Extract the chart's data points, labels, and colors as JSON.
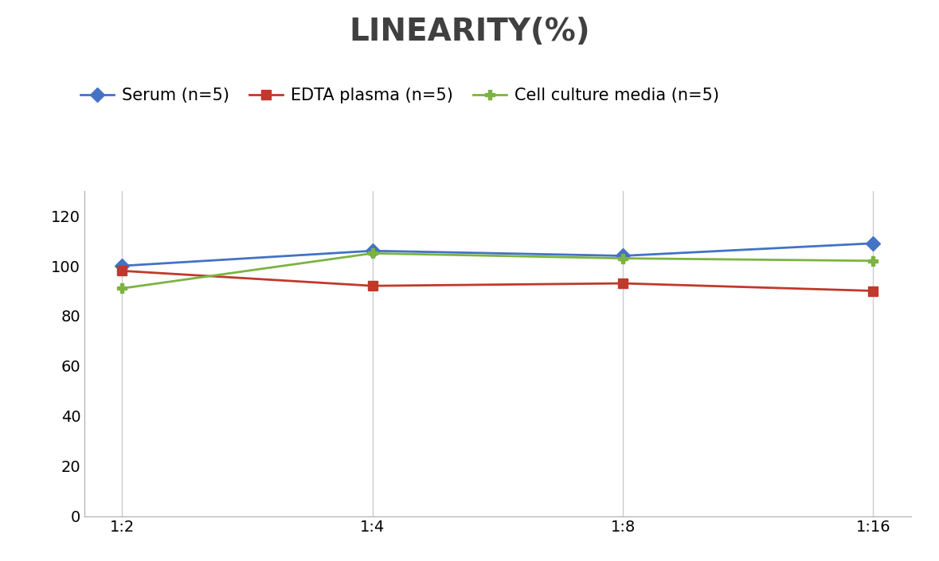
{
  "title": "LINEARITY(%)",
  "x_labels": [
    "1:2",
    "1:4",
    "1:8",
    "1:16"
  ],
  "series": [
    {
      "label": "Serum (n=5)",
      "values": [
        100,
        106,
        104,
        109
      ],
      "color": "#4472C4",
      "marker": "D"
    },
    {
      "label": "EDTA plasma (n=5)",
      "values": [
        98,
        92,
        93,
        90
      ],
      "color": "#C0392B",
      "marker": "s"
    },
    {
      "label": "Cell culture media (n=5)",
      "values": [
        91,
        105,
        103,
        102
      ],
      "color": "#7CB342",
      "marker": "P"
    }
  ],
  "ylim": [
    0,
    130
  ],
  "yticks": [
    0,
    20,
    40,
    60,
    80,
    100,
    120
  ],
  "title_fontsize": 28,
  "legend_fontsize": 15,
  "tick_fontsize": 14,
  "background_color": "#ffffff",
  "grid_color": "#cccccc",
  "title_color": "#404040"
}
